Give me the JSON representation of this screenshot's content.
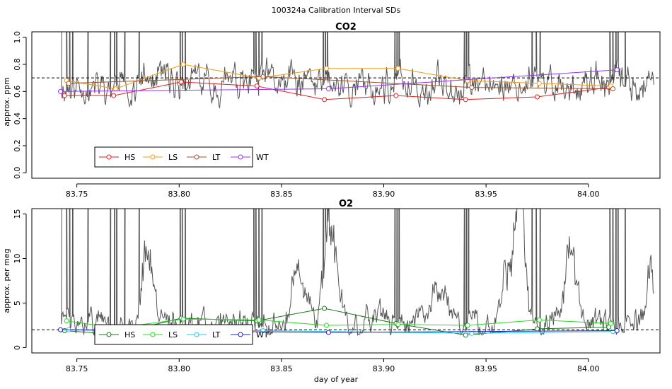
{
  "figure": {
    "title": "100324a   Calibration Interval SDs",
    "xlabel": "day of year"
  },
  "chart_data": [
    {
      "type": "line",
      "title": "CO2",
      "ylabel": "approx. ppm",
      "xlabel": "",
      "xlim": [
        83.728,
        84.035
      ],
      "ylim": [
        -0.04,
        1.04
      ],
      "x_ticks": [
        "83.75",
        "83.80",
        "83.85",
        "83.90",
        "83.95",
        "84.00"
      ],
      "y_ticks": [
        "0.0",
        "0.2",
        "0.4",
        "0.6",
        "0.8",
        "1.0"
      ],
      "reference_line": 0.7,
      "legend": {
        "placement": "bottom-left"
      },
      "trace": {
        "color": "#555555",
        "seed": 11,
        "x_start": 83.7425,
        "x_end": 84.032,
        "base": 0.65,
        "amp": 0.18,
        "min": 0.48,
        "spike_x": [
          83.7425,
          83.745,
          83.7465,
          83.748,
          83.7555,
          83.7665,
          83.7685,
          83.7695,
          83.7735,
          83.7805,
          83.8005,
          83.8015,
          83.803,
          83.8365,
          83.8375,
          83.839,
          83.8405,
          83.8705,
          83.8715,
          83.8725,
          83.9055,
          83.9065,
          83.9075,
          83.9395,
          83.9405,
          83.9415,
          83.9725,
          83.9745,
          83.9765,
          84.0105,
          84.012,
          84.0135,
          84.0145,
          84.018
        ]
      },
      "series": [
        {
          "name": "HS",
          "color": "#e0221e",
          "x": [
            83.744,
            83.768,
            83.801,
            83.838,
            83.871,
            83.906,
            83.94,
            83.975,
            84.01
          ],
          "y": [
            0.57,
            0.57,
            0.67,
            0.64,
            0.54,
            0.57,
            0.54,
            0.56,
            0.63
          ]
        },
        {
          "name": "LS",
          "color": "#f39c12",
          "x": [
            83.745,
            83.769,
            83.802,
            83.839,
            83.872,
            83.907,
            83.941,
            83.976,
            84.011
          ],
          "y": [
            0.68,
            0.62,
            0.8,
            0.7,
            0.77,
            0.77,
            0.68,
            0.66,
            0.64
          ]
        },
        {
          "name": "LT",
          "color": "#a0522d",
          "x": [
            83.746,
            83.841,
            83.943,
            84.012
          ],
          "y": [
            0.66,
            0.71,
            0.63,
            0.62
          ]
        },
        {
          "name": "WT",
          "color": "#9b30ff",
          "x": [
            83.742,
            83.873,
            84.014
          ],
          "y": [
            0.6,
            0.62,
            0.76
          ]
        }
      ]
    },
    {
      "type": "line",
      "title": "O2",
      "ylabel": "approx. per meg",
      "xlabel": "day of year",
      "xlim": [
        83.728,
        84.035
      ],
      "ylim": [
        -0.6,
        15.6
      ],
      "x_ticks": [
        "83.75",
        "83.80",
        "83.85",
        "83.90",
        "83.95",
        "84.00"
      ],
      "y_ticks": [
        "0",
        "5",
        "10",
        "15"
      ],
      "reference_line": 2.0,
      "legend": {
        "placement": "bottom-left"
      },
      "trace": {
        "color": "#555555",
        "seed": 29,
        "x_start": 83.7425,
        "x_end": 84.032,
        "base": 2.7,
        "amp": 2.2,
        "min": 1.4,
        "bumps": [
          [
            83.784,
            10.5,
            0.004
          ],
          [
            83.858,
            8.5,
            0.005
          ],
          [
            83.874,
            15.0,
            0.004
          ],
          [
            83.927,
            7.0,
            0.005
          ],
          [
            83.962,
            10.5,
            0.005
          ],
          [
            83.967,
            14.0,
            0.003
          ],
          [
            83.991,
            10.0,
            0.004
          ],
          [
            84.031,
            9.0,
            0.003
          ]
        ],
        "spike_x": [
          83.7425,
          83.745,
          83.7465,
          83.748,
          83.7555,
          83.7665,
          83.7685,
          83.7695,
          83.7735,
          83.7805,
          83.8005,
          83.8015,
          83.803,
          83.8365,
          83.8375,
          83.839,
          83.8405,
          83.8705,
          83.8715,
          83.8725,
          83.9055,
          83.9065,
          83.9075,
          83.9395,
          83.9405,
          83.9415,
          83.9725,
          83.9745,
          83.9765,
          84.0105,
          84.012,
          84.0135,
          84.0145,
          84.018
        ]
      },
      "series": [
        {
          "name": "HS",
          "color": "#1a7a1a",
          "x": [
            83.744,
            83.768,
            83.801,
            83.838,
            83.871,
            83.906,
            83.94,
            83.975,
            84.01
          ],
          "y": [
            1.9,
            1.5,
            3.3,
            3.0,
            4.4,
            2.7,
            1.4,
            2.1,
            2.3
          ]
        },
        {
          "name": "LS",
          "color": "#22dd22",
          "x": [
            83.745,
            83.769,
            83.802,
            83.839,
            83.872,
            83.907,
            83.941,
            83.976,
            84.011
          ],
          "y": [
            3.0,
            2.2,
            3.2,
            3.1,
            2.5,
            2.6,
            2.5,
            3.1,
            2.7
          ]
        },
        {
          "name": "LT",
          "color": "#22ccee",
          "x": [
            83.746,
            83.841,
            83.943,
            84.012
          ],
          "y": [
            2.0,
            1.9,
            1.6,
            1.8
          ]
        },
        {
          "name": "WT",
          "color": "#2222cc",
          "x": [
            83.742,
            83.873,
            84.014
          ],
          "y": [
            2.0,
            1.7,
            1.9
          ]
        }
      ]
    }
  ]
}
